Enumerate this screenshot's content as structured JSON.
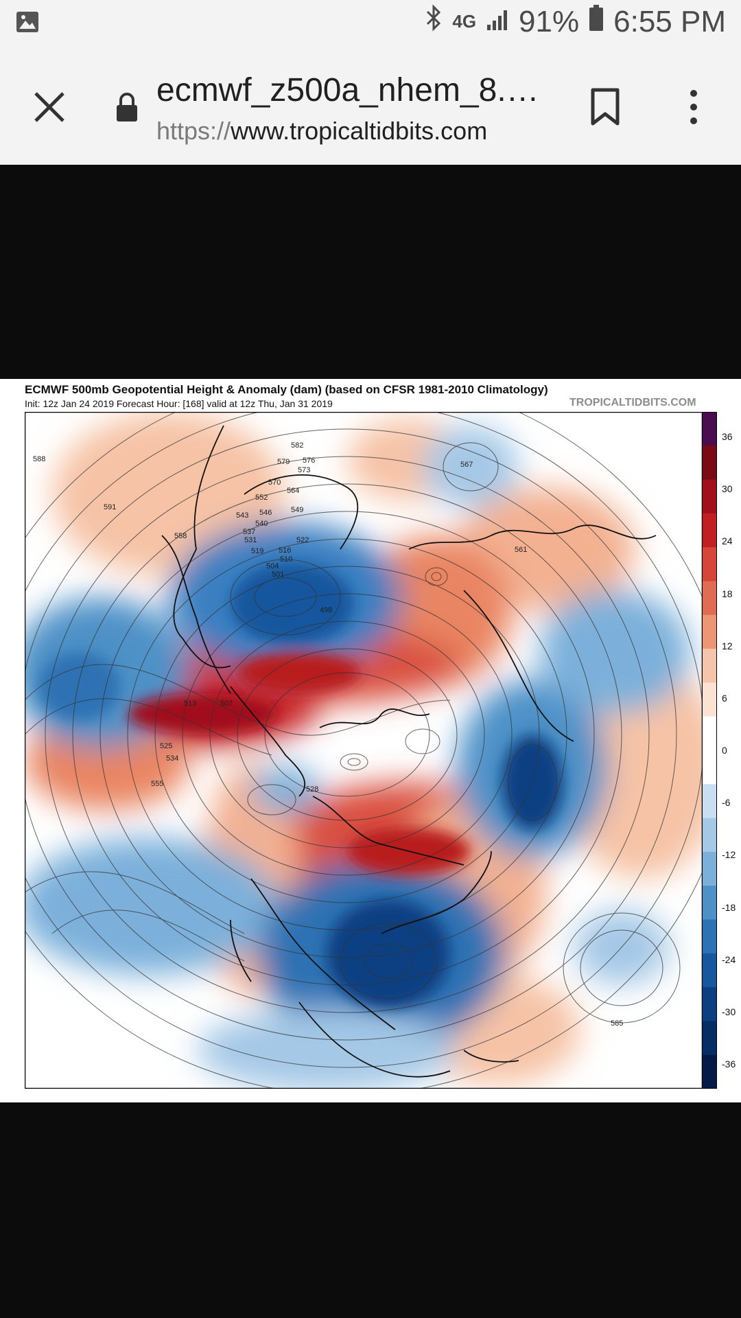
{
  "status_bar": {
    "network": "4G",
    "battery": "91%",
    "time": "6:55 PM"
  },
  "toolbar": {
    "title": "ecmwf_z500a_nhem_8.…",
    "url_scheme": "https://",
    "url_host": "www.tropicaltidbits.com"
  },
  "map": {
    "title": "ECMWF 500mb Geopotential Height & Anomaly (dam) (based on CFSR 1981-2010 Climatology)",
    "subtitle": "Init: 12z Jan 24 2019   Forecast Hour: [168]   valid at 12z Thu, Jan 31 2019",
    "brand": "TROPICALTIDBITS.COM",
    "colorbar_labels": [
      "36",
      "30",
      "24",
      "18",
      "12",
      "6",
      "0",
      "-6",
      "-12",
      "-18",
      "-24",
      "-30",
      "-36"
    ],
    "colorbar_colors": [
      "#4a0e4e",
      "#7a0a14",
      "#a10f1b",
      "#c21f22",
      "#d6453a",
      "#e06c54",
      "#ec9676",
      "#f5c5ab",
      "#fbe3d4",
      "#ffffff",
      "#ffffff",
      "#c9def0",
      "#a4c8e6",
      "#7bb0da",
      "#4e91c7",
      "#2d72b3",
      "#17579e",
      "#0c3f82",
      "#062e64",
      "#051a47"
    ],
    "contour_labels": [
      {
        "text": "588"
      },
      {
        "text": "591"
      },
      {
        "text": "582"
      },
      {
        "text": "579"
      },
      {
        "text": "576"
      },
      {
        "text": "573"
      },
      {
        "text": "570"
      },
      {
        "text": "564"
      },
      {
        "text": "549"
      },
      {
        "text": "546"
      },
      {
        "text": "552"
      },
      {
        "text": "558"
      },
      {
        "text": "543"
      },
      {
        "text": "540"
      },
      {
        "text": "537"
      },
      {
        "text": "531"
      },
      {
        "text": "522"
      },
      {
        "text": "519"
      },
      {
        "text": "516"
      },
      {
        "text": "510"
      },
      {
        "text": "504"
      },
      {
        "text": "501"
      },
      {
        "text": "498"
      },
      {
        "text": "507"
      },
      {
        "text": "513"
      },
      {
        "text": "525"
      },
      {
        "text": "534"
      },
      {
        "text": "555"
      },
      {
        "text": "528"
      },
      {
        "text": "561"
      },
      {
        "text": "567"
      },
      {
        "text": "585"
      }
    ]
  }
}
